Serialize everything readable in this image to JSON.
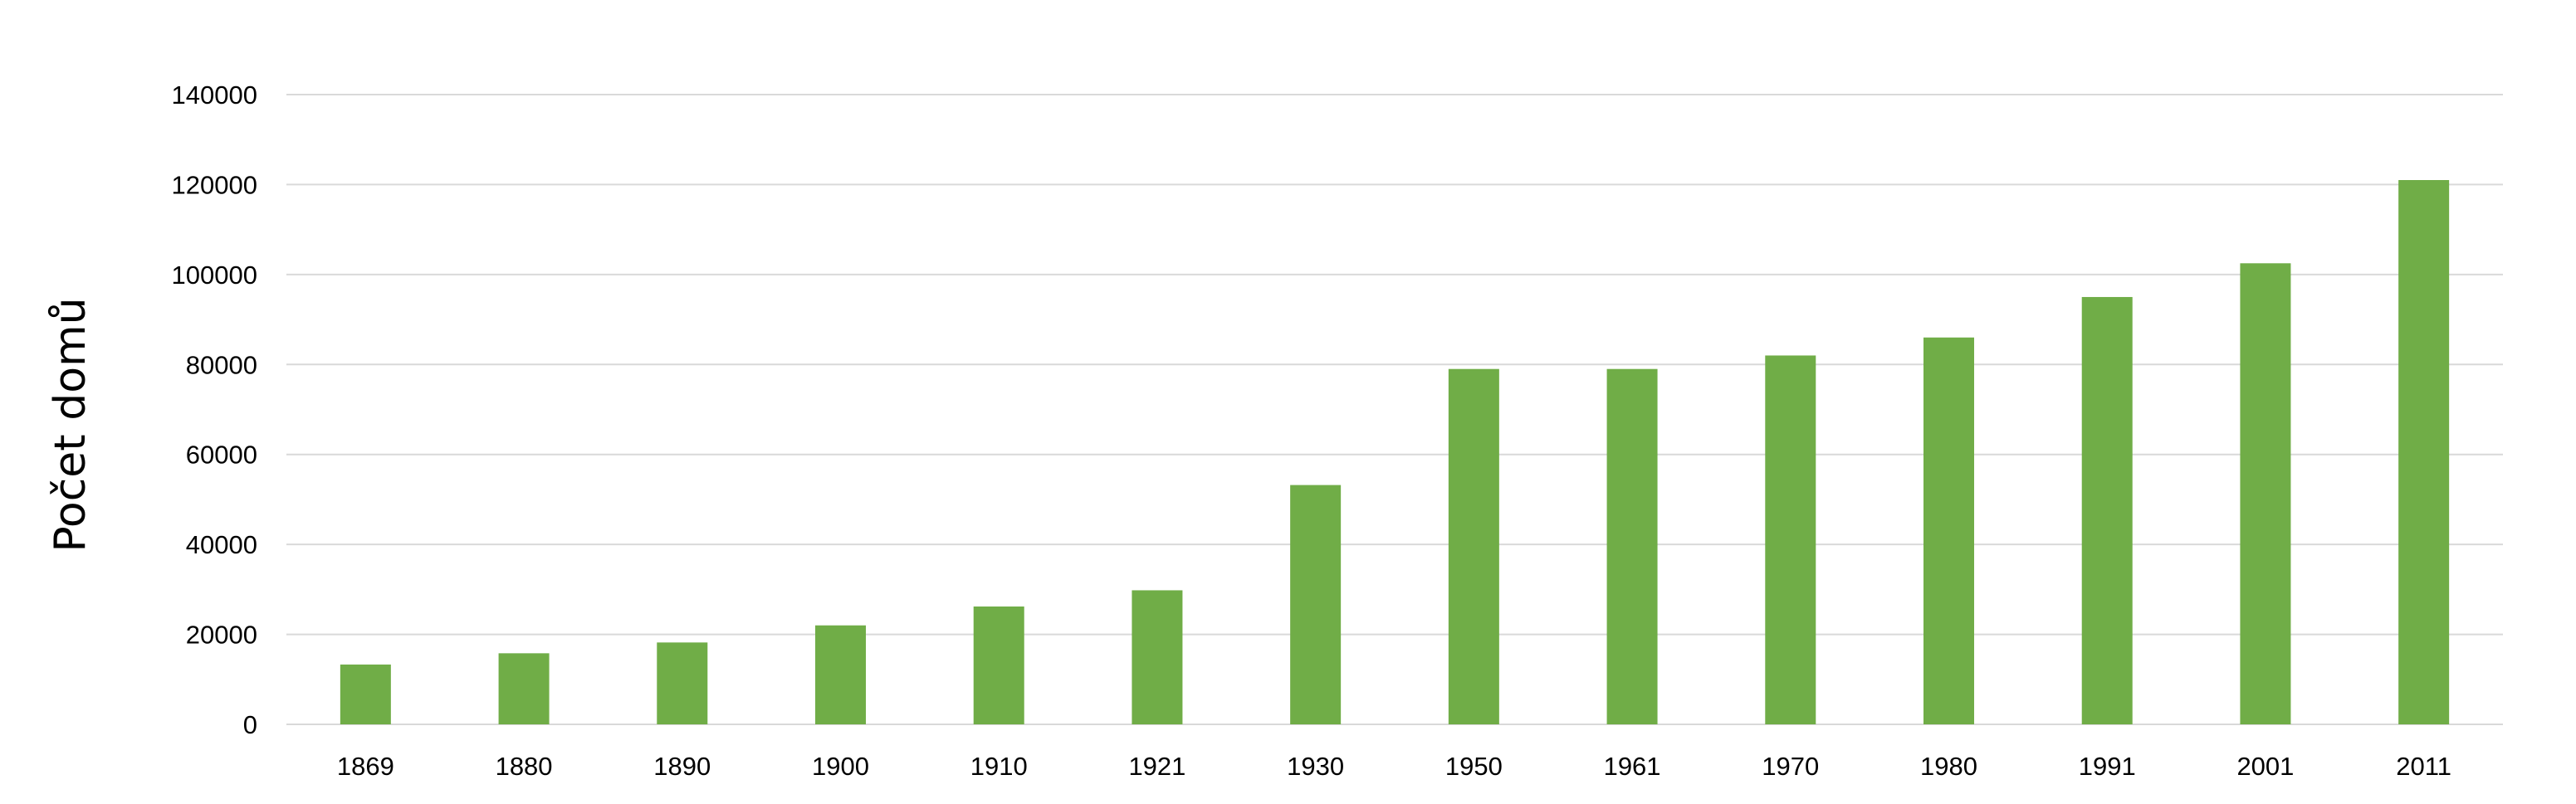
{
  "chart_data": {
    "type": "bar",
    "title": "",
    "xlabel": "",
    "ylabel": "Počet domů",
    "categories": [
      "1869",
      "1880",
      "1890",
      "1900",
      "1910",
      "1921",
      "1930",
      "1950",
      "1961",
      "1970",
      "1980",
      "1991",
      "2001",
      "2011"
    ],
    "series": [
      {
        "values": [
          13300,
          15800,
          18200,
          22000,
          26200,
          29800,
          53200,
          79000,
          79000,
          82000,
          86000,
          95000,
          102500,
          121000
        ],
        "color": "#70ad47"
      }
    ],
    "ylim": [
      0,
      140000
    ],
    "yticks": [
      "0",
      "20000",
      "40000",
      "60000",
      "80000",
      "100000",
      "120000",
      "140000"
    ],
    "grid": true,
    "gridColor": "#d9d9d9",
    "legend": "none"
  }
}
